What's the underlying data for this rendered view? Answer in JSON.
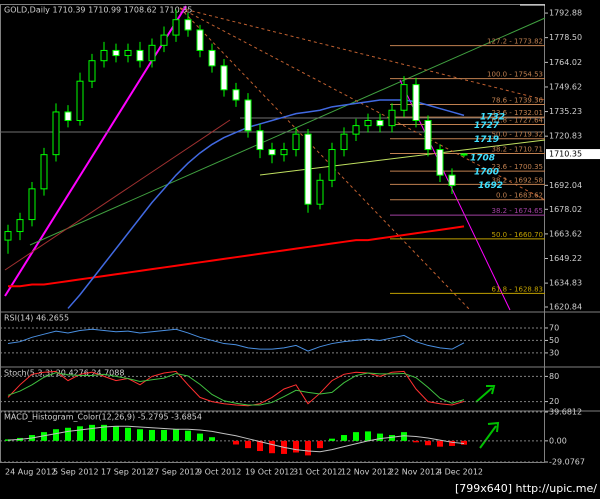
{
  "chart_data": [
    {
      "type": "candlestick",
      "title": "GOLD,Daily  1710.39 1710.99 1708.62 1710.35",
      "categories": [
        "24 Aug 2012",
        null,
        null,
        null,
        "5 Sep 2012",
        null,
        null,
        null,
        "17 Sep 2012",
        null,
        null,
        null,
        "27 Sep 2012",
        null,
        null,
        null,
        "9 Oct 2012",
        null,
        null,
        null,
        "19 Oct 2012",
        null,
        null,
        null,
        "31 Oct 2012",
        null,
        null,
        null,
        "12 Nov 2012",
        null,
        null,
        null,
        "22 Nov 2012",
        null,
        null,
        null,
        "4 Dec 2012",
        null,
        null
      ],
      "open": [
        1660,
        1665,
        1672,
        1690,
        1710,
        1735,
        1730,
        1753,
        1765,
        1771,
        1768,
        1771,
        1765,
        1774,
        1780,
        1789,
        1783,
        1771,
        1762,
        1748,
        1742,
        1724,
        1713,
        1710,
        1713,
        1722,
        1681,
        1695,
        1713,
        1722,
        1727,
        1730,
        1727,
        1736,
        1751,
        1730,
        1713,
        1698,
        1710.39
      ],
      "high": [
        1669,
        1676,
        1694,
        1714,
        1740,
        1739,
        1758,
        1769,
        1776,
        1775,
        1775,
        1776,
        1778,
        1785,
        1795,
        1793,
        1786,
        1775,
        1766,
        1752,
        1746,
        1728,
        1717,
        1717,
        1726,
        1725,
        1699,
        1717,
        1726,
        1731,
        1734,
        1734,
        1740,
        1756,
        1755,
        1733,
        1716,
        1702,
        1710.99
      ],
      "low": [
        1652,
        1660,
        1668,
        1686,
        1706,
        1726,
        1727,
        1749,
        1761,
        1764,
        1764,
        1761,
        1761,
        1770,
        1776,
        1779,
        1767,
        1758,
        1744,
        1738,
        1720,
        1708,
        1705,
        1706,
        1709,
        1676,
        1678,
        1691,
        1709,
        1718,
        1723,
        1723,
        1723,
        1732,
        1726,
        1709,
        1694,
        1687,
        1708.62
      ],
      "close": [
        1665,
        1672,
        1690,
        1710,
        1735,
        1730,
        1753,
        1765,
        1771,
        1768,
        1771,
        1765,
        1774,
        1780,
        1789,
        1783,
        1771,
        1762,
        1748,
        1742,
        1724,
        1713,
        1710,
        1713,
        1722,
        1681,
        1695,
        1713,
        1722,
        1727,
        1730,
        1727,
        1736,
        1751,
        1730,
        1713,
        1698,
        1692,
        1710.35
      ],
      "candle_color": "#00ff00",
      "up_fill": "#000000",
      "down_fill": "#ffffff",
      "lines": [
        {
          "color": "#ff0000",
          "values": [
            1633,
            1633,
            1634,
            1634,
            1635,
            1636,
            1637,
            1638,
            1639,
            1640,
            1641,
            1642,
            1643,
            1644,
            1645,
            1646,
            1647,
            1648,
            1649,
            1650,
            1651,
            1652,
            1653,
            1654,
            1655,
            1656,
            1657,
            1658,
            1659,
            1660,
            1660,
            1661,
            1662,
            1663,
            1664,
            1665,
            1666,
            1667,
            1668
          ]
        },
        {
          "color": "#4169e1",
          "values": [
            null,
            null,
            null,
            null,
            null,
            1620,
            1628,
            1637,
            1646,
            1655,
            1664,
            1673,
            1682,
            1690,
            1698,
            1705,
            1711,
            1716,
            1720,
            1723,
            1726,
            1728,
            1730,
            1732,
            1734,
            1735,
            1736,
            1738,
            1739,
            1740,
            1741,
            1742,
            1742,
            1742,
            1741,
            1739,
            1737,
            1735,
            1733
          ]
        }
      ],
      "levels": [
        {
          "value": 1773.82,
          "label": "127.2 - 1773.82",
          "color": "#c08050"
        },
        {
          "value": 1754.53,
          "label": "100.0 - 1754.53",
          "color": "#c08050"
        },
        {
          "value": 1739.36,
          "label": "78.6 - 1739.36",
          "color": "#c08050"
        },
        {
          "value": 1732.01,
          "label": "23.6 - 1732.01",
          "color": "#c08050"
        },
        {
          "value": 1727.64,
          "label": "61.8 - 1727.64",
          "color": "#c08050"
        },
        {
          "value": 1719.32,
          "label": "50.0 - 1719.32",
          "color": "#c08050"
        },
        {
          "value": 1710.71,
          "label": "38.2 - 1710.71",
          "color": "#c08050"
        },
        {
          "value": 1700.35,
          "label": "23.6 - 1700.35",
          "color": "#c08050"
        },
        {
          "value": 1692.58,
          "label": "38.2 - 1692.58",
          "color": "#c08050"
        },
        {
          "value": 1683.62,
          "label": "0.0 - 1683.62",
          "color": "#c08050"
        },
        {
          "value": 1674.65,
          "label": "38.2 - 1674.65",
          "color": "#a040a0"
        },
        {
          "value": 1660.7,
          "label": "50.0 - 1660.70",
          "color": "#c0a000"
        },
        {
          "value": 1628.83,
          "label": "61.8 - 1628.83",
          "color": "#c0a000"
        }
      ],
      "pivots": [
        1732,
        1727,
        1719,
        1708,
        1700,
        1692
      ],
      "current_price": 1710.35,
      "ylim": [
        1618.5,
        1797.6
      ],
      "yticks": [
        1792.88,
        {
          "value": 1778.5,
          "label": "1778.50"
        },
        1764.02,
        1749.62,
        1735.23,
        1720.83,
        1692.04,
        1678.02,
        1663.62,
        1649.22,
        1634.83,
        1620.84
      ],
      "grid": false
    },
    {
      "type": "line",
      "title": "RSI(14) 46.2655",
      "series": [
        {
          "color": "#4a90e2",
          "values": [
            45,
            48,
            55,
            60,
            65,
            62,
            66,
            68,
            66,
            64,
            65,
            62,
            64,
            66,
            68,
            62,
            55,
            50,
            45,
            43,
            38,
            36,
            36,
            38,
            42,
            33,
            40,
            45,
            48,
            50,
            52,
            50,
            54,
            58,
            48,
            42,
            38,
            36,
            46.2655
          ]
        }
      ],
      "ylim": [
        9,
        94
      ],
      "yticks": [
        70,
        50,
        30
      ],
      "grid": true
    },
    {
      "type": "line",
      "title": "Stoch(5,3,3) 20.4276 24.7088",
      "series": [
        {
          "color": "#ff3030",
          "values": [
            30,
            60,
            85,
            90,
            92,
            70,
            85,
            90,
            80,
            70,
            75,
            60,
            80,
            88,
            92,
            60,
            30,
            20,
            15,
            12,
            10,
            15,
            30,
            50,
            60,
            15,
            40,
            70,
            85,
            90,
            88,
            80,
            90,
            92,
            50,
            20,
            15,
            12,
            20.4276
          ]
        },
        {
          "color": "#40c040",
          "values": [
            35,
            45,
            60,
            78,
            89,
            84,
            82,
            82,
            85,
            80,
            75,
            68,
            72,
            76,
            87,
            81,
            61,
            37,
            22,
            16,
            12,
            12,
            18,
            32,
            47,
            42,
            38,
            42,
            65,
            82,
            88,
            86,
            86,
            87,
            77,
            54,
            28,
            16,
            24.7088
          ]
        }
      ],
      "ylim": [
        0,
        100
      ],
      "yticks": [
        80,
        20
      ],
      "grid": true
    },
    {
      "type": "bar",
      "title": "MACD_Histogram_Color(12,26,9) -5.2795 -3.6854",
      "values": [
        2,
        4,
        8,
        12,
        16,
        18,
        20,
        22,
        22,
        20,
        18,
        16,
        15,
        15,
        16,
        14,
        10,
        5,
        0,
        -5,
        -10,
        -14,
        -17,
        -18,
        -16,
        -20,
        -10,
        3,
        8,
        12,
        13,
        10,
        8,
        12,
        -2,
        -6,
        -8,
        -7,
        -5.2795
      ],
      "signal": [
        1,
        2,
        4,
        7,
        10,
        13,
        15,
        17,
        19,
        20,
        20,
        19,
        18,
        17,
        16,
        16,
        15,
        13,
        10,
        7,
        3,
        -1,
        -5,
        -9,
        -12,
        -14,
        -15,
        -12,
        -8,
        -4,
        0,
        3,
        5,
        7,
        6,
        4,
        1,
        -2,
        -3.6854
      ],
      "up_color": "#00ff00",
      "down_color": "#ff0000",
      "signal_color": "#c0c0c0",
      "ylim": [
        -29.0767,
        39.6812
      ],
      "yticks": [
        39.6812,
        {
          "value": 0,
          "label": "0.00"
        },
        -29.0767
      ],
      "grid": true
    }
  ],
  "watermark": "[799x640] http://upic.me/"
}
